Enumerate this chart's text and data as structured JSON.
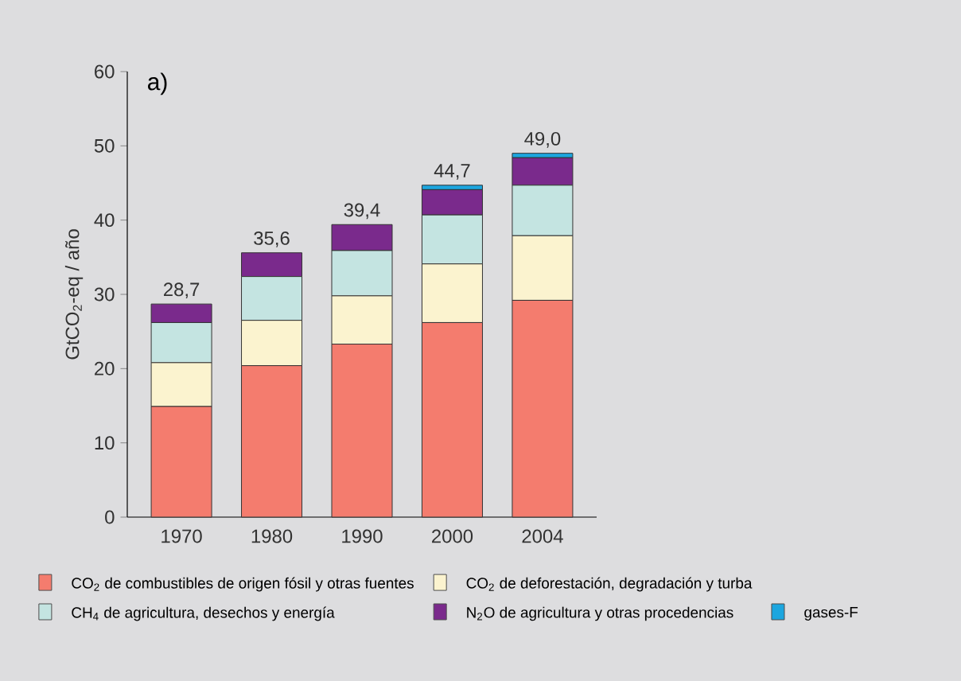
{
  "chart_data": {
    "type": "bar",
    "stacked": true,
    "annotations": [
      "a)"
    ],
    "ylabel": "GtCO$_{2}$-eq / año",
    "categories": [
      "1970",
      "1980",
      "1990",
      "2000",
      "2004"
    ],
    "series": [
      {
        "name": "CO$_{2}$ de combustibles de origen fósil y otras fuentes",
        "color": "#f47c6e",
        "values": [
          14.9,
          20.4,
          23.3,
          26.2,
          29.2
        ]
      },
      {
        "name": "CO$_{2}$ de deforestación, degradación y turba",
        "color": "#fbf3cf",
        "values": [
          5.9,
          6.1,
          6.5,
          7.9,
          8.7
        ]
      },
      {
        "name": "CH$_{4}$ de agricultura, desechos y energía",
        "color": "#c4e4e1",
        "values": [
          5.4,
          5.9,
          6.1,
          6.6,
          6.8
        ]
      },
      {
        "name": "N$_{2}$O de agricultura y otras procedencias",
        "color": "#7a2a8c",
        "values": [
          2.5,
          3.2,
          3.5,
          3.4,
          3.7
        ]
      },
      {
        "name": "gases-F",
        "color": "#1ca6df",
        "values": [
          null,
          null,
          null,
          0.6,
          0.6
        ]
      }
    ],
    "totals": [
      "28,7",
      "35,6",
      "39,4",
      "44,7",
      "49,0"
    ],
    "ylim": [
      0,
      60
    ],
    "yticks": [
      0,
      10,
      20,
      30,
      40,
      50,
      60
    ],
    "legend": "bottom"
  }
}
